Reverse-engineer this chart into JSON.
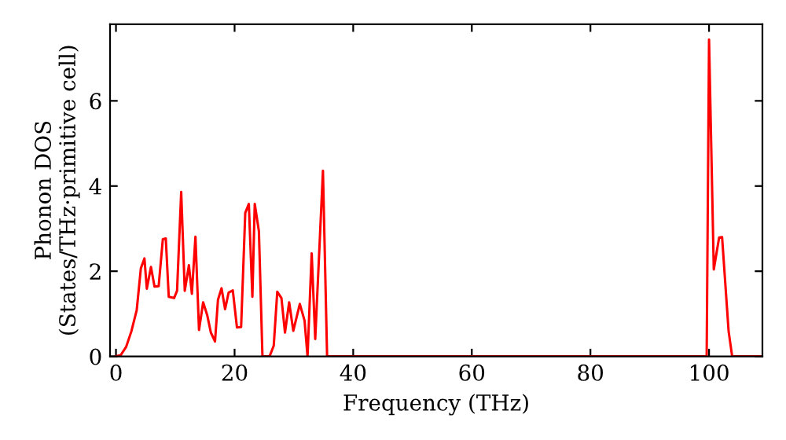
{
  "chart_data": {
    "type": "line",
    "xlabel": "Frequency (THz)",
    "ylabel": "Phonon DOS\n(States/THz·primitive cell)",
    "x": [
      0,
      0.8,
      1.7,
      2.6,
      3.5,
      4.2,
      4.8,
      5.2,
      5.9,
      6.5,
      7.2,
      7.9,
      8.4,
      8.9,
      9.8,
      10.3,
      11.0,
      11.6,
      12.3,
      12.8,
      13.4,
      14.0,
      14.7,
      15.4,
      16.0,
      16.7,
      17.2,
      17.8,
      18.4,
      19.0,
      19.7,
      20.4,
      21.1,
      21.8,
      22.4,
      23.0,
      23.4,
      24.1,
      24.7,
      25.9,
      26.6,
      27.2,
      27.9,
      28.5,
      29.2,
      29.9,
      31.0,
      31.8,
      32.3,
      33.0,
      33.6,
      34.9,
      35.6,
      99.6,
      100.0,
      100.8,
      101.7,
      102.2,
      103.3,
      103.9,
      109
    ],
    "series": [
      {
        "color": "#ff0000",
        "values": [
          0,
          0.03,
          0.22,
          0.59,
          1.09,
          2.07,
          2.3,
          1.59,
          2.1,
          1.64,
          1.65,
          2.75,
          2.77,
          1.4,
          1.37,
          1.54,
          3.86,
          1.54,
          2.14,
          1.47,
          2.81,
          0.62,
          1.27,
          0.96,
          0.56,
          0.35,
          1.33,
          1.6,
          1.11,
          1.5,
          1.55,
          0.68,
          0.69,
          3.37,
          3.58,
          1.4,
          3.58,
          2.94,
          0,
          0,
          0.25,
          1.52,
          1.37,
          0.56,
          1.27,
          0.6,
          1.23,
          0.84,
          0,
          2.42,
          0.41,
          4.36,
          0,
          0,
          7.44,
          2.04,
          2.79,
          2.8,
          0.59,
          0,
          0
        ]
      }
    ],
    "xlim": [
      -1,
      109
    ],
    "ylim": [
      0,
      7.8
    ],
    "xticks": [
      0,
      20,
      40,
      60,
      80,
      100
    ],
    "yticks": [
      0,
      2,
      4,
      6
    ],
    "grid": false,
    "legend": false,
    "marker": "none",
    "line_style": "solid"
  }
}
